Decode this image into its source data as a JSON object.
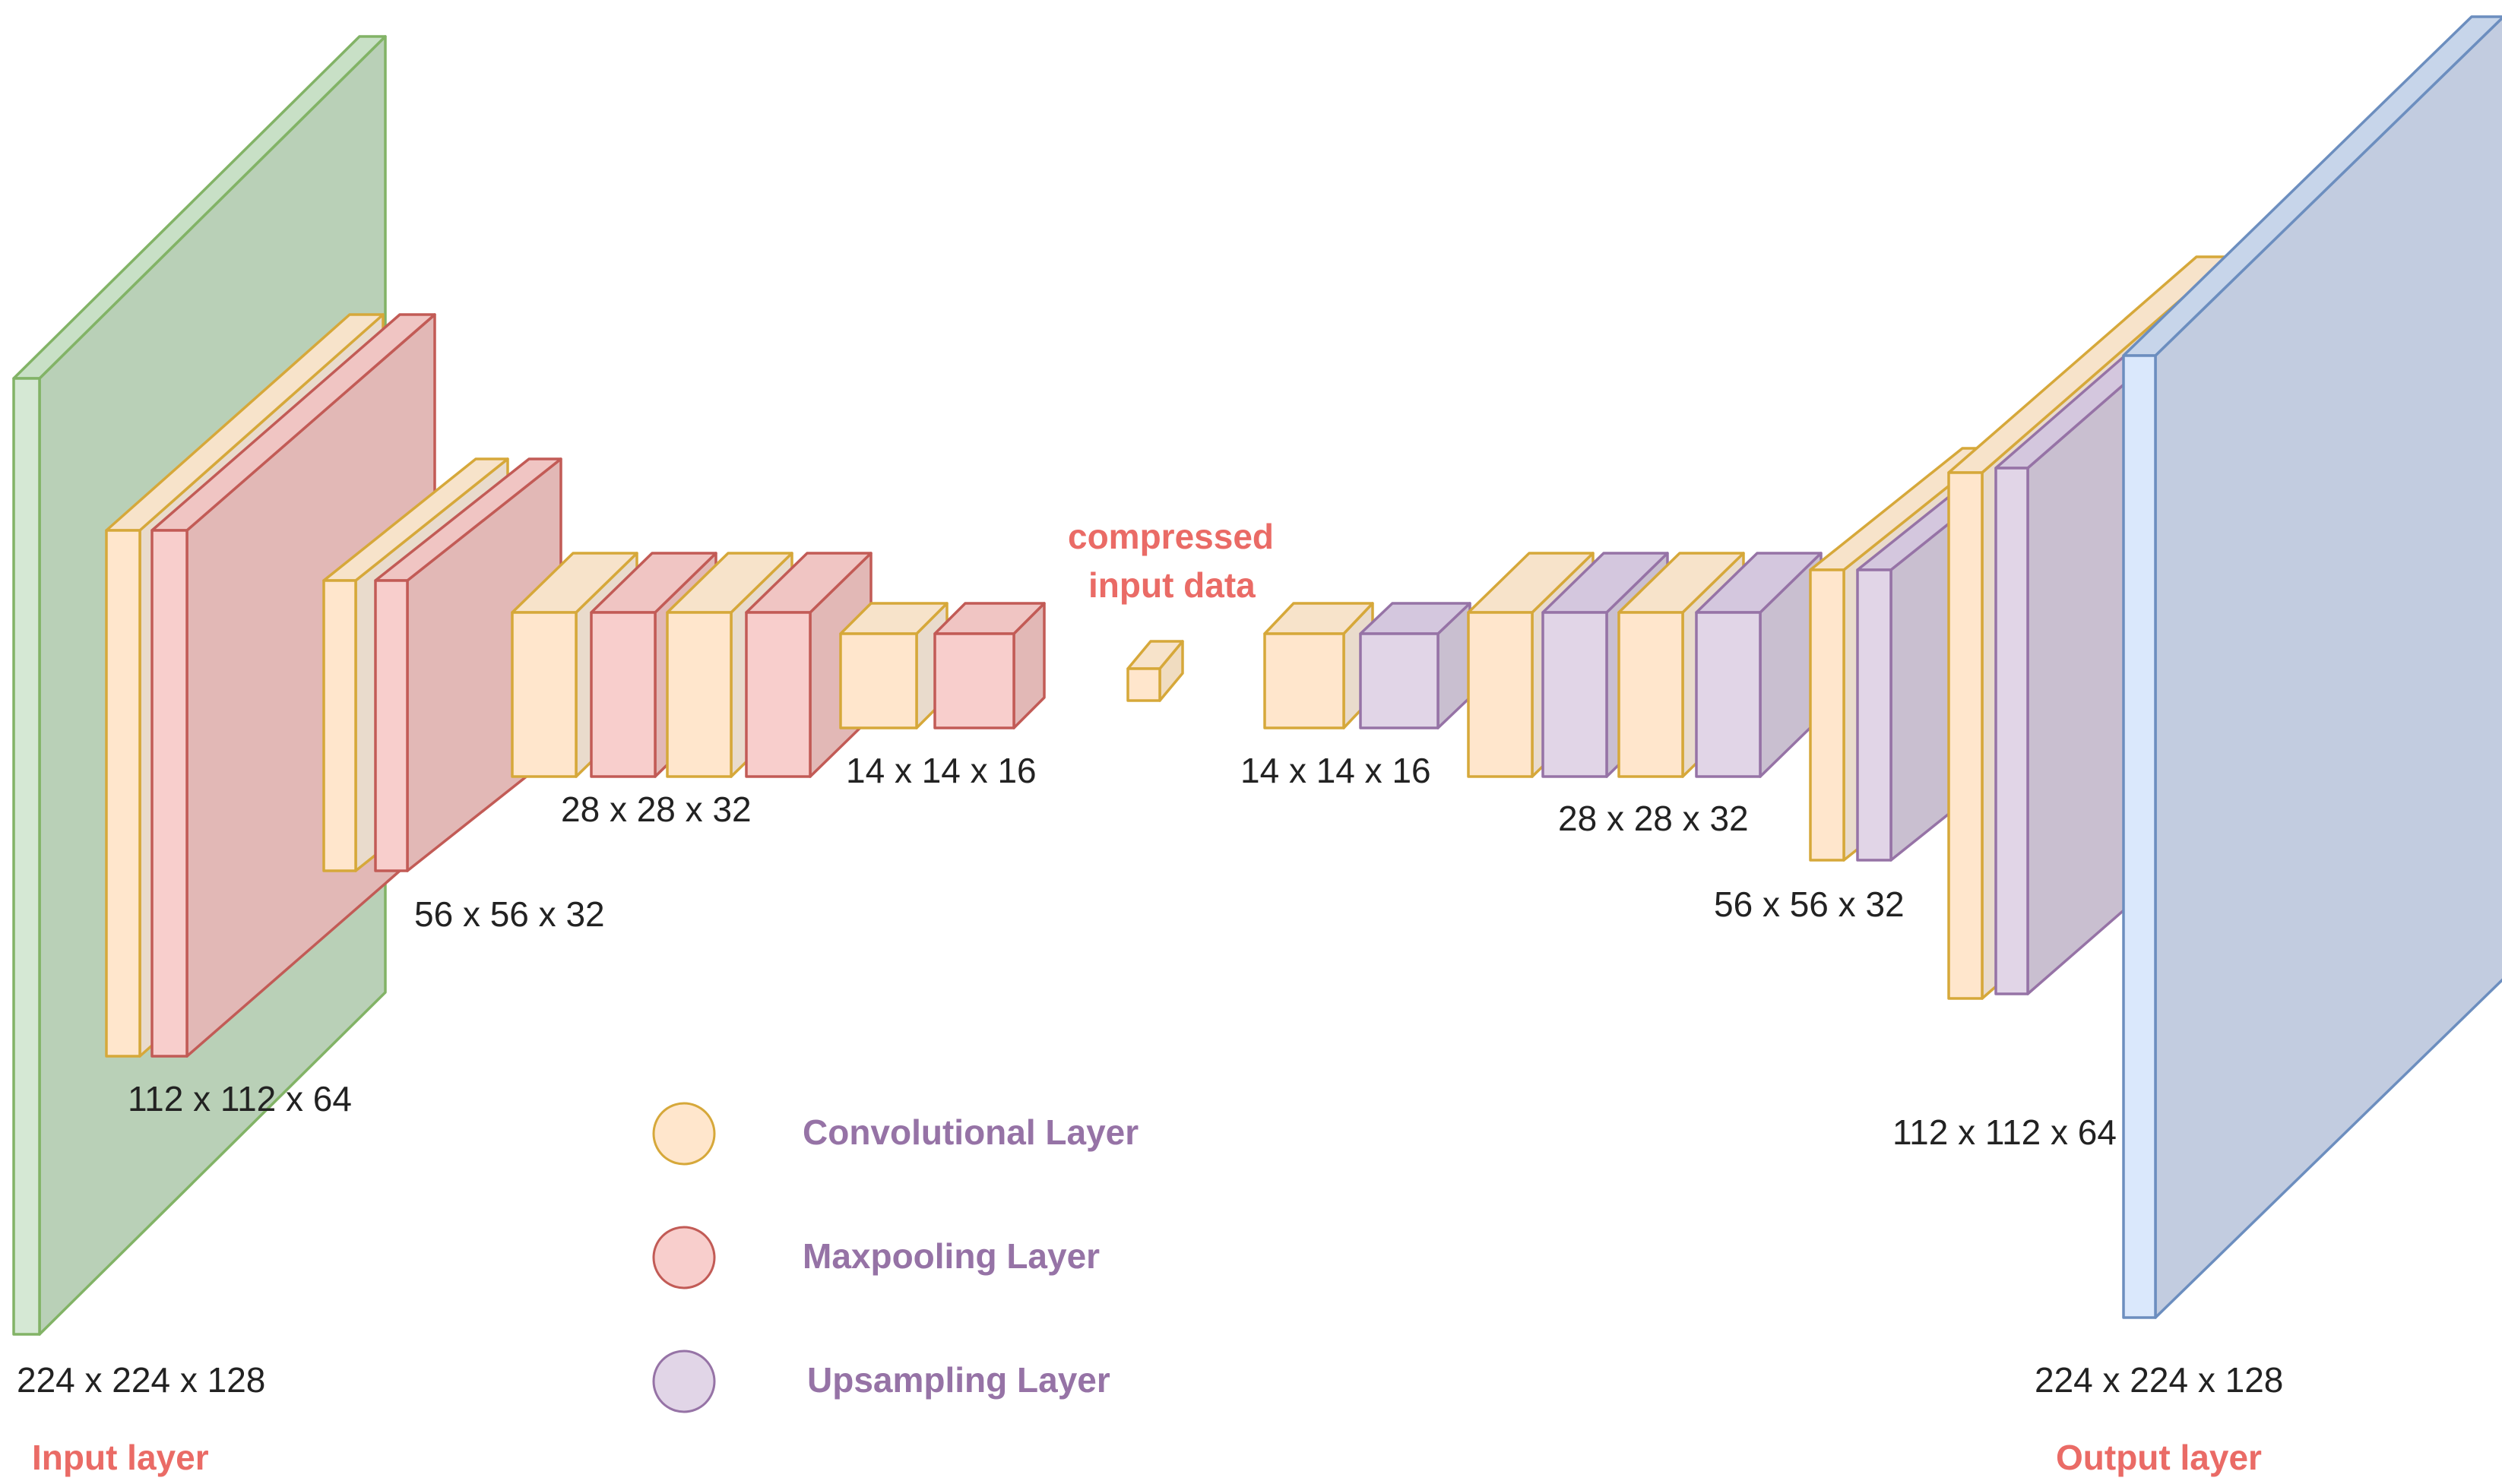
{
  "colors": {
    "input": {
      "front": "#d5e8d4",
      "top": "#c8e0c6",
      "side": "#b9d0b7",
      "stroke": "#82b366"
    },
    "output": {
      "front": "#dae8fc",
      "top": "#c7d5ea",
      "side": "#c2cce0",
      "stroke": "#6c8ebf"
    },
    "conv": {
      "front": "#ffe6cc",
      "top": "#f7e3ca",
      "side": "#e9dbcc",
      "stroke": "#d6a83a"
    },
    "maxpool": {
      "front": "#f8cecc",
      "top": "#f0c5c3",
      "side": "#e2b8b6",
      "stroke": "#c25b56"
    },
    "upsamp": {
      "front": "#e1d5e7",
      "top": "#d4c7de",
      "side": "#c9bfd0",
      "stroke": "#9673a6"
    },
    "bottleneck": {
      "front": "#ffe6cc",
      "top": "#f7e3ca",
      "side": "#f0dcc0",
      "stroke": "#d6a83a"
    },
    "label_red": "#ea6b66",
    "legend_text": "#9673a6"
  },
  "labels": {
    "input_dim": "224 x 224 x 128",
    "input_name": "Input layer",
    "enc_112": "112 x 112 x 64",
    "enc_56": "56 x 56 x 32",
    "enc_28": "28 x 28 x 32",
    "enc_14": "14 x 14 x 16",
    "compressed_line1": "compressed",
    "compressed_line2": "input data",
    "dec_14": "14 x 14 x 16",
    "dec_28": "28 x 28 x 32",
    "dec_56": "56 x 56 x 32",
    "dec_112": "112 x 112 x 64",
    "output_dim": "224 x 224 x 128",
    "output_name": "Output layer"
  },
  "legend": [
    {
      "label": "Convolutional Layer",
      "kind": "conv"
    },
    {
      "label": "Maxpooling  Layer",
      "kind": "maxpool"
    },
    {
      "label": "Upsampling  Layer",
      "kind": "upsamp"
    }
  ]
}
